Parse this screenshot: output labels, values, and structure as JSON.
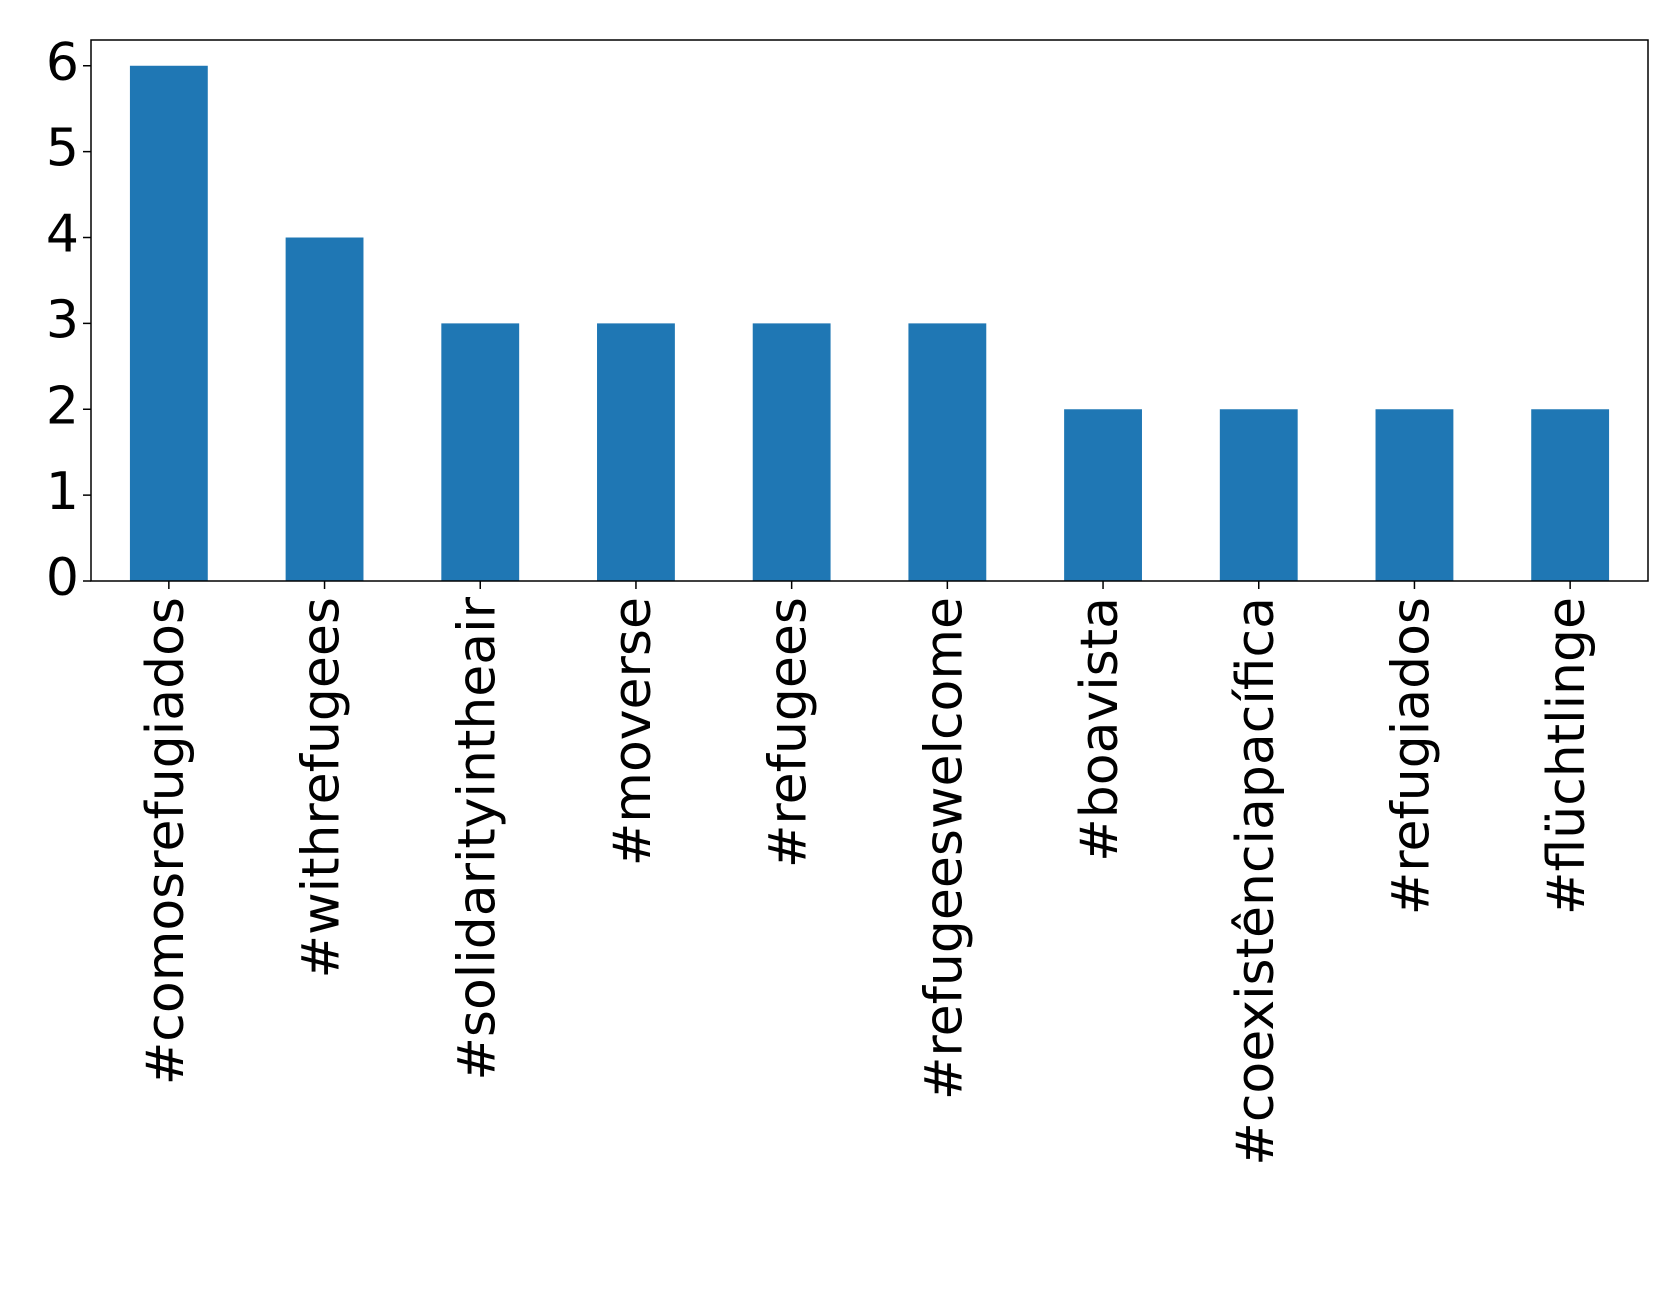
{
  "chart_data": {
    "type": "bar",
    "categories": [
      "#comosrefugiados",
      "#withrefugees",
      "#solidarityintheair",
      "#moverse",
      "#refugees",
      "#refugeeswelcome",
      "#boavista",
      "#coexistênciapacífica",
      "#refugiados",
      "#flüchtlinge"
    ],
    "values": [
      6,
      4,
      3,
      3,
      3,
      3,
      2,
      2,
      2,
      2
    ],
    "color": "#1f77b4",
    "ylim": [
      0,
      6.3
    ],
    "yticks": [
      0,
      1,
      2,
      3,
      4,
      5,
      6
    ],
    "grid": false
  }
}
